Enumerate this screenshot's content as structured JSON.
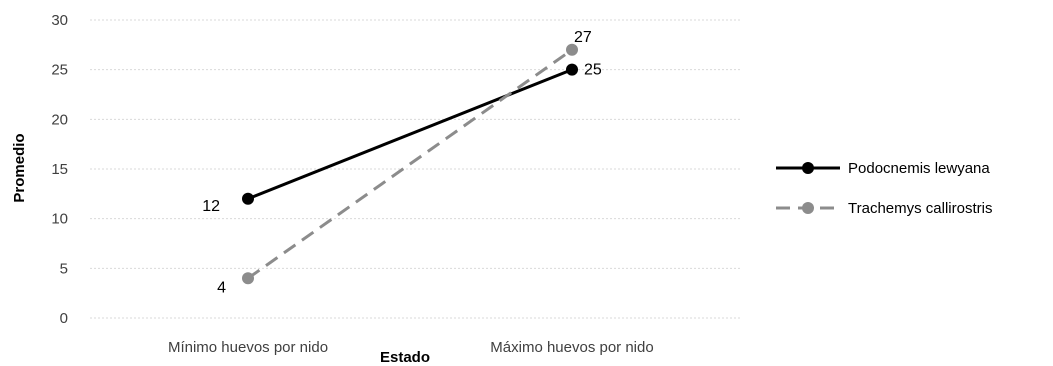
{
  "chart_data": {
    "type": "line",
    "categories": [
      "Mínimo huevos por nido",
      "Máximo huevos por nido"
    ],
    "series": [
      {
        "name": "Podocnemis lewyana",
        "values": [
          12,
          25
        ],
        "color": "#000000",
        "dash": "solid"
      },
      {
        "name": "Trachemys callirostris",
        "values": [
          4,
          27
        ],
        "color": "#8c8c8c",
        "dash": "dashed"
      }
    ],
    "xlabel": "Estado",
    "ylabel": "Promedio",
    "ylim": [
      0,
      30
    ],
    "yticks": [
      0,
      5,
      10,
      15,
      20,
      25,
      30
    ],
    "grid": true,
    "legend_position": "right",
    "data_labels": true
  }
}
